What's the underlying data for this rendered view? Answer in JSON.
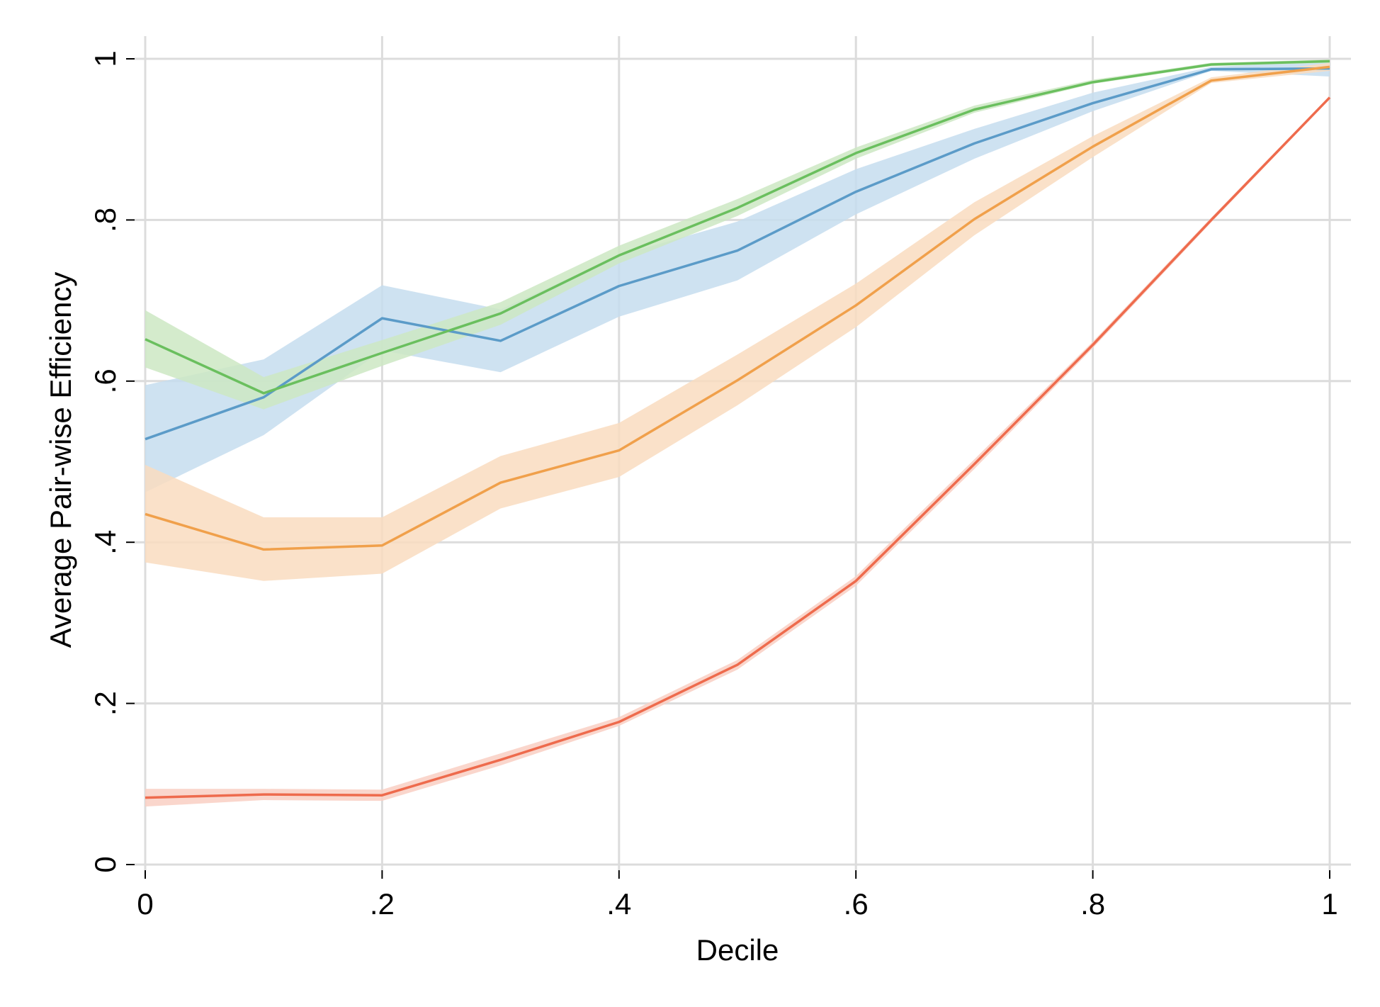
{
  "chart_data": {
    "type": "line",
    "title": "",
    "xlabel": "Decile",
    "ylabel": "Average Pair-wise Efficiency",
    "xlim": [
      0,
      1
    ],
    "ylim": [
      0,
      1
    ],
    "x_ticks": [
      0,
      0.2,
      0.4,
      0.6,
      0.8,
      1
    ],
    "x_tick_labels": [
      "0",
      ".2",
      ".4",
      ".6",
      ".8",
      "1"
    ],
    "y_ticks": [
      0,
      0.2,
      0.4,
      0.6,
      0.8,
      1
    ],
    "y_tick_labels": [
      "0",
      ".2",
      ".4",
      ".6",
      ".8",
      "1"
    ],
    "grid": true,
    "legend": "none",
    "x": [
      0,
      0.1,
      0.2,
      0.3,
      0.4,
      0.5,
      0.6,
      0.7,
      0.8,
      0.9,
      1
    ],
    "series": [
      {
        "color": "#5b9bc8",
        "band_color": "#c5ddee",
        "values": [
          0.528,
          0.58,
          0.678,
          0.65,
          0.718,
          0.762,
          0.835,
          0.895,
          0.945,
          0.987,
          0.988
        ],
        "lower": [
          0.462,
          0.533,
          0.638,
          0.611,
          0.68,
          0.725,
          0.807,
          0.876,
          0.935,
          0.985,
          0.978
        ],
        "upper": [
          0.595,
          0.627,
          0.719,
          0.689,
          0.756,
          0.798,
          0.863,
          0.913,
          0.958,
          0.99,
          0.997
        ]
      },
      {
        "color": "#6abf5e",
        "band_color": "#cce8c3",
        "values": [
          0.652,
          0.585,
          0.635,
          0.684,
          0.756,
          0.815,
          0.883,
          0.937,
          0.971,
          0.993,
          0.997
        ],
        "lower": [
          0.617,
          0.565,
          0.619,
          0.67,
          0.746,
          0.805,
          0.876,
          0.933,
          0.969,
          0.991,
          0.995
        ],
        "upper": [
          0.688,
          0.605,
          0.651,
          0.698,
          0.768,
          0.826,
          0.89,
          0.942,
          0.974,
          0.995,
          0.999
        ]
      },
      {
        "color": "#f0a04b",
        "band_color": "#f9dcc0",
        "values": [
          0.435,
          0.391,
          0.396,
          0.474,
          0.514,
          0.601,
          0.694,
          0.801,
          0.891,
          0.973,
          0.99
        ],
        "lower": [
          0.375,
          0.352,
          0.361,
          0.442,
          0.481,
          0.57,
          0.667,
          0.781,
          0.878,
          0.97,
          0.985
        ],
        "upper": [
          0.496,
          0.431,
          0.431,
          0.507,
          0.548,
          0.633,
          0.721,
          0.822,
          0.904,
          0.977,
          0.995
        ]
      },
      {
        "color": "#ee6b4d",
        "band_color": "#f9cfc3",
        "values": [
          0.083,
          0.087,
          0.086,
          0.13,
          0.177,
          0.248,
          0.352,
          0.497,
          0.645,
          0.8,
          0.952
        ],
        "lower": [
          0.072,
          0.08,
          0.079,
          0.123,
          0.172,
          0.242,
          0.346,
          0.491,
          0.641,
          0.797,
          0.95
        ],
        "upper": [
          0.094,
          0.094,
          0.093,
          0.138,
          0.183,
          0.254,
          0.358,
          0.503,
          0.649,
          0.803,
          0.954
        ]
      }
    ]
  }
}
